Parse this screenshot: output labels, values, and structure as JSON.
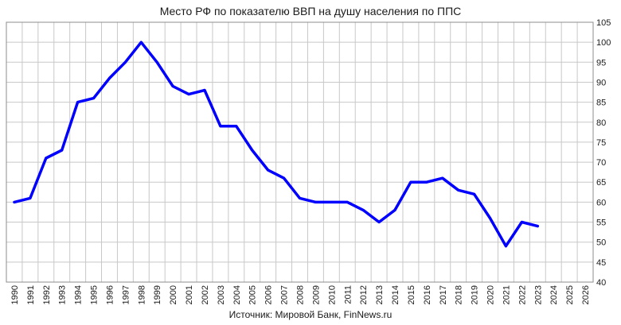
{
  "chart_data": {
    "type": "line",
    "title": "Место РФ по показателю ВВП на душу населения по ППС",
    "source": "Источник: Мировой Банк, FinNews.ru",
    "xlabel": "",
    "ylabel": "",
    "x_ticks": [
      1990,
      1991,
      1992,
      1993,
      1994,
      1995,
      1996,
      1997,
      1998,
      1999,
      2000,
      2001,
      2002,
      2003,
      2004,
      2005,
      2006,
      2007,
      2008,
      2009,
      2010,
      2011,
      2012,
      2013,
      2014,
      2015,
      2016,
      2017,
      2018,
      2019,
      2020,
      2021,
      2022,
      2023,
      2024,
      2025,
      2026
    ],
    "xlim": [
      1990,
      2026
    ],
    "ylim": [
      40,
      105
    ],
    "y_ticks": [
      40,
      45,
      50,
      55,
      60,
      65,
      70,
      75,
      80,
      85,
      90,
      95,
      100,
      105
    ],
    "y_axis_side": "right",
    "grid": true,
    "legend": "none",
    "line_color": "#0000ff",
    "series": [
      {
        "x": [
          1990,
          1991,
          1992,
          1993,
          1994,
          1995,
          1996,
          1997,
          1998,
          1999,
          2000,
          2001,
          2002,
          2003,
          2004,
          2005,
          2006,
          2007,
          2008,
          2009,
          2010,
          2011,
          2012,
          2013,
          2014,
          2015,
          2016,
          2017,
          2018,
          2019,
          2020,
          2021,
          2022,
          2023
        ],
        "values": [
          60,
          61,
          71,
          73,
          85,
          86,
          91,
          95,
          100,
          95,
          89,
          87,
          88,
          79,
          79,
          73,
          68,
          66,
          61,
          60,
          60,
          60,
          58,
          55,
          58,
          65,
          65,
          66,
          63,
          62,
          56,
          49,
          55,
          54
        ]
      }
    ]
  }
}
